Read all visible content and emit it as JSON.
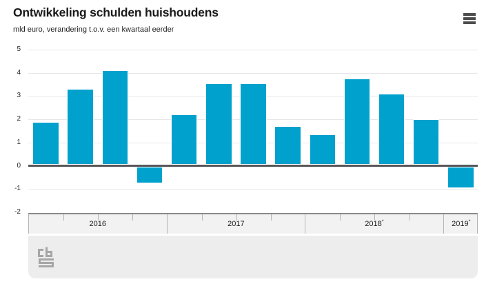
{
  "header": {
    "title": "Ontwikkeling schulden huishoudens",
    "subtitle": "mld euro, verandering t.o.v. een kwartaal eerder",
    "menu_icon": "hamburger-menu-icon"
  },
  "chart_data": {
    "type": "bar",
    "title": "Ontwikkeling schulden huishoudens",
    "ylabel_unit": "mld euro, verandering t.o.v. een kwartaal eerder",
    "ylim": [
      -2,
      5
    ],
    "yticks": [
      5,
      4,
      3,
      2,
      1,
      0,
      -1,
      -2
    ],
    "grid": true,
    "legend_position": "none",
    "bar_color": "#00a1cd",
    "x_groups": [
      {
        "label": "2016",
        "suffix": "",
        "quarter_values": [
          1.9,
          3.3,
          4.1,
          -0.75
        ]
      },
      {
        "label": "2017",
        "suffix": "",
        "quarter_values": [
          2.2,
          3.55,
          3.55,
          1.7
        ]
      },
      {
        "label": "2018",
        "suffix": "*",
        "quarter_values": [
          1.35,
          3.75,
          3.1,
          2.0
        ]
      },
      {
        "label": "2019",
        "suffix": "*",
        "quarter_values": [
          -0.95
        ]
      }
    ]
  },
  "footer": {
    "logo": "cbs-logo"
  }
}
